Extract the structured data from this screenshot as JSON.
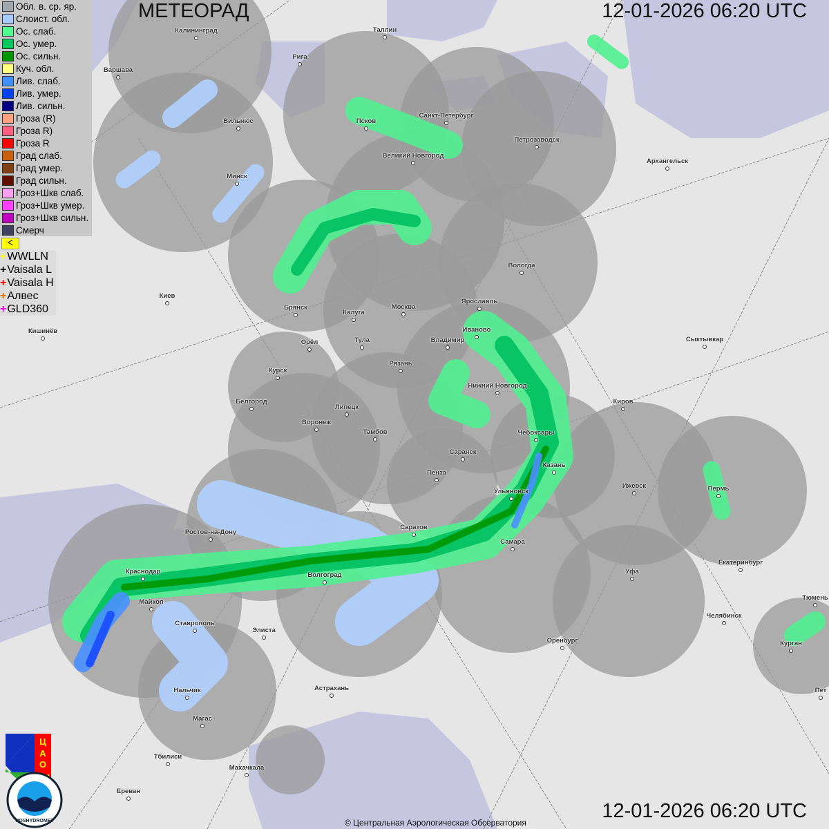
{
  "header": {
    "title": "МЕТЕОРАД",
    "timestamp_top": "12-01-2026  06:20 UTC",
    "timestamp_bottom": "12-01-2026  06:20 UTC"
  },
  "legend": [
    {
      "label": "Обл. в. ср. яр.",
      "color": "#a0a8ae"
    },
    {
      "label": "Слоист. обл.",
      "color": "#a8ccff"
    },
    {
      "label": "Ос. слаб.",
      "color": "#50ff90"
    },
    {
      "label": "Ос. умер.",
      "color": "#00c860"
    },
    {
      "label": "Ос. сильн.",
      "color": "#009600"
    },
    {
      "label": "Куч. обл.",
      "color": "#ffff80"
    },
    {
      "label": "Лив. слаб.",
      "color": "#4090ff"
    },
    {
      "label": "Лив. умер.",
      "color": "#0040ff"
    },
    {
      "label": "Лив. сильн.",
      "color": "#000080"
    },
    {
      "label": "Гроза (R)",
      "color": "#ffa080"
    },
    {
      "label": "Гроза R)",
      "color": "#ff6080"
    },
    {
      "label": "Гроза R",
      "color": "#ff0000"
    },
    {
      "label": "Град слаб.",
      "color": "#c86010"
    },
    {
      "label": "Град умер.",
      "color": "#804010"
    },
    {
      "label": "Град сильн.",
      "color": "#601000"
    },
    {
      "label": "Гроз+Шкв слаб.",
      "color": "#ffa0f0"
    },
    {
      "label": "Гроз+Шкв умер.",
      "color": "#ff40ff"
    },
    {
      "label": "Гроз+Шкв сильн.",
      "color": "#c000c0"
    },
    {
      "label": "Смерч",
      "color": "#404060"
    }
  ],
  "lightning_legend": [
    {
      "label": "WWLLN",
      "color": "#ffff00"
    },
    {
      "label": "Vaisala L",
      "color": "#000000"
    },
    {
      "label": "Vaisala H",
      "color": "#ff0000"
    },
    {
      "label": "Алвес",
      "color": "#e07000"
    },
    {
      "label": "GLD360",
      "color": "#e000e0"
    }
  ],
  "flag_button": "ᐸ",
  "logos": {
    "cao": "ЦАО 1941",
    "roshydromet": "РОСГИДРОМЕТ ROSHYDROMET"
  },
  "copyright": "© Центральная Аэрологическая Обсерватория",
  "cities": [
    "Калининград",
    "Таллин",
    "Рига",
    "Варшава",
    "Вильнюс",
    "Псков",
    "Санкт-Петербург",
    "Петрозаводск",
    "Великий Новгород",
    "Архангельск",
    "Минск",
    "Вологда",
    "Киев",
    "Брянск",
    "Калуга",
    "Москва",
    "Ярославль",
    "Иваново",
    "Владимир",
    "Тула",
    "Орёл",
    "Кишинёв",
    "Сыктывкар",
    "Рязань",
    "Курск",
    "Нижний Новгород",
    "Белгород",
    "Липецк",
    "Киров",
    "Воронеж",
    "Тамбов",
    "Чебоксары",
    "Саранск",
    "Пенза",
    "Казань",
    "Ижевск",
    "Пермь",
    "Ульяновск",
    "Ростов-на-Дону",
    "Саратов",
    "Самара",
    "Краснодар",
    "Волгоград",
    "Уфа",
    "Екатеринбург",
    "Майкоп",
    "Тюмень",
    "Ставрополь",
    "Элиста",
    "Челябинск",
    "Оренбург",
    "Курган",
    "Астрахань",
    "Нальчик",
    "Магас",
    "Тбилиси",
    "Махачкала",
    "Ереван",
    "Пет"
  ]
}
